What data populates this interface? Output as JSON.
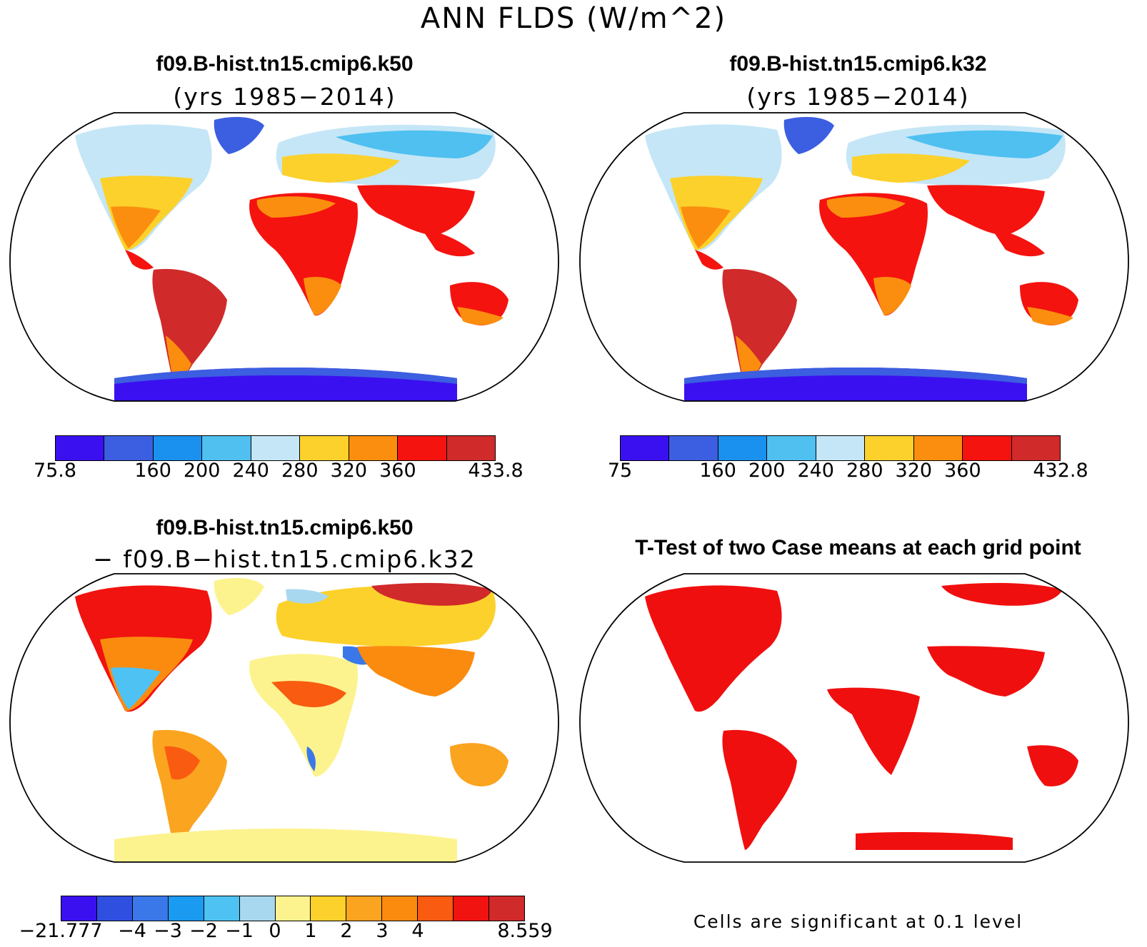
{
  "figure_title": "ANN FLDS (W/m^2)",
  "panels": {
    "k50": {
      "title": "f09.B-hist.tn15.cmip6.k50",
      "subtitle": "(yrs 1985−2014)",
      "colorbar": {
        "labels": [
          "75.8",
          "160",
          "200",
          "240",
          "280",
          "320",
          "360",
          "433.8"
        ],
        "colors": [
          "#3a10f0",
          "#3c5ee0",
          "#1a90ef",
          "#4fc0f0",
          "#c5e6f6",
          "#fcd12b",
          "#fb8e0f",
          "#f4130f",
          "#d02a2a"
        ]
      }
    },
    "k32": {
      "title": "f09.B-hist.tn15.cmip6.k32",
      "subtitle": "(yrs 1985−2014)",
      "colorbar": {
        "labels": [
          "75",
          "160",
          "200",
          "240",
          "280",
          "320",
          "360",
          "432.8"
        ],
        "colors": [
          "#3a10f0",
          "#3c5ee0",
          "#1a90ef",
          "#4fc0f0",
          "#c5e6f6",
          "#fcd12b",
          "#fb8e0f",
          "#f4130f",
          "#d02a2a"
        ]
      }
    },
    "diff": {
      "title": "f09.B-hist.tn15.cmip6.k50",
      "subtitle": "− f09.B−hist.tn15.cmip6.k32",
      "colorbar": {
        "labels": [
          "−21.777",
          "−4",
          "−3",
          "−2",
          "−1",
          "0",
          "1",
          "2",
          "3",
          "4",
          "8.559"
        ],
        "colors": [
          "#3a10f0",
          "#2f4fe0",
          "#3a78ea",
          "#1a9af0",
          "#4ec2f2",
          "#a8d8f0",
          "#fdf38e",
          "#fcd12b",
          "#fba420",
          "#fb8b0f",
          "#f95b10",
          "#f0130f",
          "#d02a2a"
        ]
      }
    },
    "ttest": {
      "title": "T-Test of two Case means at each grid point",
      "note": "Cells are significant at 0.1 level",
      "significant_color": "#f00f0f"
    }
  }
}
